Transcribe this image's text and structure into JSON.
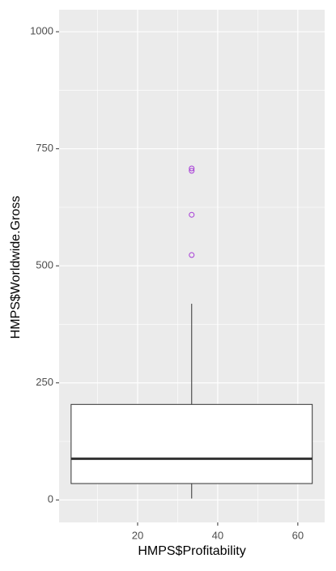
{
  "chart_data": {
    "type": "boxplot",
    "xlabel": "HMPS$Profitability",
    "ylabel": "HMPS$Worldwide.Gross",
    "xlim": [
      0.4,
      66.7
    ],
    "ylim": [
      -48,
      1047
    ],
    "xticks": [
      20,
      40,
      60
    ],
    "yticks": [
      0,
      250,
      500,
      750,
      1000
    ],
    "minor_xticks": [
      10,
      30,
      50
    ],
    "minor_yticks": [
      125,
      375,
      625,
      875
    ],
    "grid": true,
    "box": {
      "x": 33.5,
      "xmin": 3.4,
      "xmax": 63.6,
      "lower": 3,
      "q1": 35,
      "median": 88,
      "q3": 204,
      "upper": 419,
      "color": "#333333"
    },
    "outliers": {
      "color": "#a63bd6",
      "x": [
        33.5,
        33.5,
        33.5,
        33.5
      ],
      "y": [
        708,
        703,
        609,
        523
      ]
    }
  }
}
